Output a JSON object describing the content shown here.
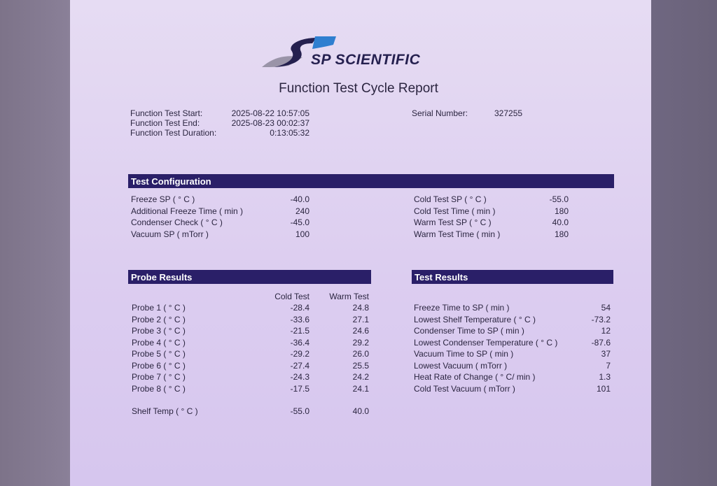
{
  "brand": {
    "name": "SP SCIENTIFIC",
    "colors": {
      "navy": "#25204f",
      "blue": "#2f7fd0",
      "grey": "#9a94a8"
    }
  },
  "title": "Function Test Cycle Report",
  "info": [
    {
      "label": "Function Test Start:",
      "value": "2025-08-22 10:57:05"
    },
    {
      "label": "Function Test End:",
      "value": "2025-08-23 00:02:37"
    },
    {
      "label": "Function Test Duration:",
      "value": "0:13:05:32"
    }
  ],
  "serial": {
    "label": "Serial Number:",
    "value": "327255"
  },
  "config": {
    "heading": "Test Configuration",
    "left": [
      {
        "label": "Freeze SP ( ° C )",
        "value": "-40.0"
      },
      {
        "label": "Additional Freeze Time ( min )",
        "value": "240"
      },
      {
        "label": "Condenser Check ( ° C )",
        "value": "-45.0"
      },
      {
        "label": "Vacuum SP ( mTorr )",
        "value": "100"
      }
    ],
    "right": [
      {
        "label": "Cold Test SP ( ° C )",
        "value": "-55.0"
      },
      {
        "label": "Cold Test Time ( min )",
        "value": "180"
      },
      {
        "label": "Warm Test SP ( ° C )",
        "value": "40.0"
      },
      {
        "label": "Warm Test Time ( min )",
        "value": "180"
      }
    ]
  },
  "probes": {
    "heading": "Probe Results",
    "columns": [
      "Cold Test",
      "Warm Test"
    ],
    "rows": [
      {
        "label": "Probe 1 ( ° C )",
        "cold": "-28.4",
        "warm": "24.8"
      },
      {
        "label": "Probe 2 ( ° C )",
        "cold": "-33.6",
        "warm": "27.1"
      },
      {
        "label": "Probe 3 ( ° C )",
        "cold": "-21.5",
        "warm": "24.6"
      },
      {
        "label": "Probe 4 ( ° C )",
        "cold": "-36.4",
        "warm": "29.2"
      },
      {
        "label": "Probe 5 ( ° C )",
        "cold": "-29.2",
        "warm": "26.0"
      },
      {
        "label": "Probe 6 ( ° C )",
        "cold": "-27.4",
        "warm": "25.5"
      },
      {
        "label": "Probe 7 ( ° C )",
        "cold": "-24.3",
        "warm": "24.2"
      },
      {
        "label": "Probe 8 ( ° C )",
        "cold": "-17.5",
        "warm": "24.1"
      }
    ],
    "shelf": {
      "label": "Shelf Temp ( ° C )",
      "cold": "-55.0",
      "warm": "40.0"
    }
  },
  "results": {
    "heading": "Test Results",
    "rows": [
      {
        "label": "Freeze Time to SP ( min )",
        "value": "54"
      },
      {
        "label": "Lowest Shelf Temperature ( ° C )",
        "value": "-73.2"
      },
      {
        "label": "Condenser Time to SP ( min )",
        "value": "12"
      },
      {
        "label": "Lowest Condenser Temperature ( ° C )",
        "value": "-87.6"
      },
      {
        "label": "Vacuum Time to SP ( min )",
        "value": "37"
      },
      {
        "label": "Lowest Vacuum ( mTorr )",
        "value": "7"
      },
      {
        "label": "Heat Rate of Change ( ° C/ min )",
        "value": "1.3"
      },
      {
        "label": "Cold Test Vacuum ( mTorr )",
        "value": "101"
      }
    ]
  }
}
